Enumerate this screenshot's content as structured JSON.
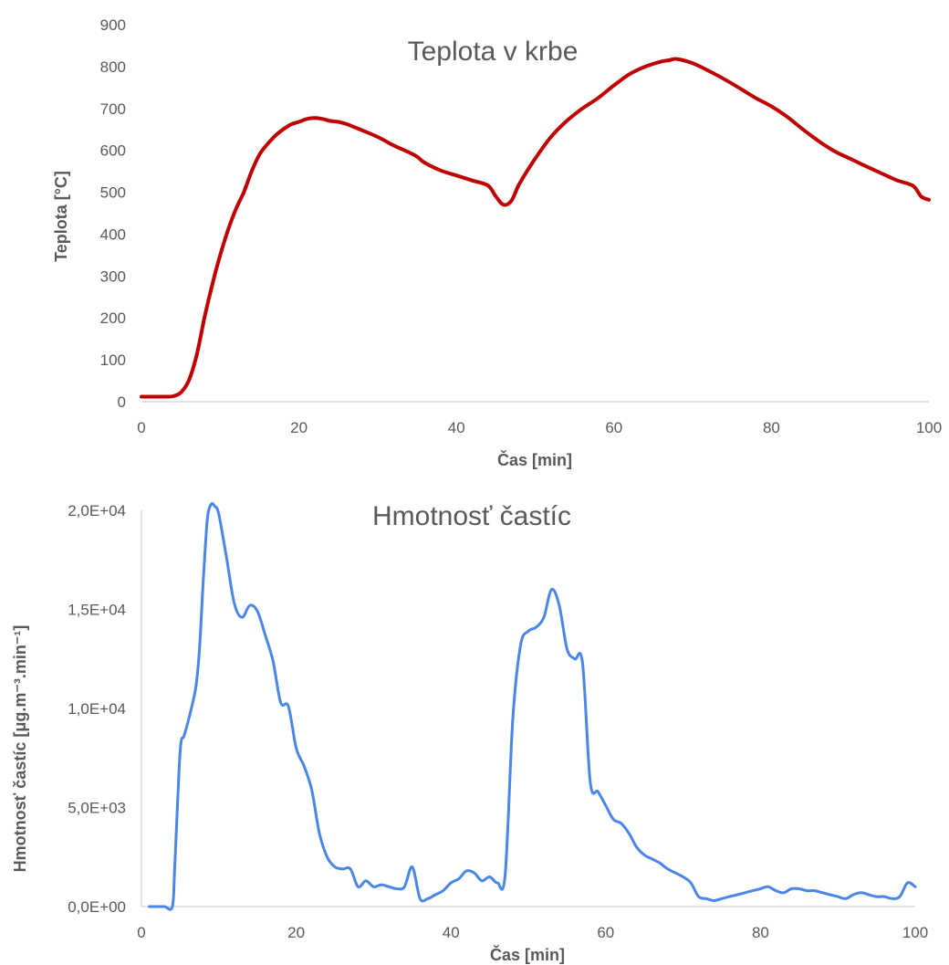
{
  "chart_data": [
    {
      "type": "line",
      "title": "Teplota v krbe",
      "xlabel": "Čas [min]",
      "ylabel": "Teplota [°C]",
      "xlim": [
        0,
        100
      ],
      "ylim": [
        0,
        900
      ],
      "xticks": [
        "0",
        "20",
        "40",
        "60",
        "80",
        "100"
      ],
      "yticks": [
        "0",
        "100",
        "200",
        "300",
        "400",
        "500",
        "600",
        "700",
        "800",
        "900"
      ],
      "grid": false,
      "series": [
        {
          "color": "#c00000",
          "x": [
            0,
            2,
            3,
            4,
            5,
            6,
            7,
            8,
            9,
            10,
            11,
            12,
            13,
            14,
            15,
            16,
            17,
            18,
            19,
            20,
            21,
            22,
            23,
            24,
            25,
            26,
            28,
            30,
            32,
            34,
            35,
            36,
            38,
            40,
            42,
            44,
            45,
            46,
            47,
            48,
            50,
            52,
            54,
            56,
            58,
            60,
            62,
            64,
            66,
            67,
            68,
            70,
            72,
            74,
            76,
            78,
            80,
            82,
            84,
            86,
            88,
            90,
            92,
            94,
            96,
            98,
            99,
            100
          ],
          "y": [
            12,
            12,
            12,
            13,
            22,
            50,
            110,
            200,
            280,
            350,
            410,
            460,
            500,
            550,
            590,
            615,
            635,
            650,
            662,
            668,
            675,
            677,
            675,
            670,
            668,
            663,
            648,
            632,
            612,
            595,
            585,
            570,
            552,
            540,
            528,
            516,
            490,
            470,
            480,
            520,
            580,
            632,
            670,
            700,
            725,
            755,
            782,
            800,
            812,
            815,
            818,
            808,
            790,
            770,
            748,
            725,
            705,
            680,
            650,
            622,
            598,
            580,
            562,
            545,
            528,
            515,
            490,
            482
          ]
        }
      ]
    },
    {
      "type": "line",
      "title": "Hmotnosť častíc",
      "xlabel": "Čas [min]",
      "ylabel": "Hmotnosť častíc [μg.m⁻³.min⁻¹]",
      "xlim": [
        0,
        100
      ],
      "ylim": [
        0,
        20000
      ],
      "xticks": [
        "0",
        "20",
        "40",
        "60",
        "80",
        "100"
      ],
      "yticks": [
        "0,0E+00",
        "5,0E+03",
        "1,0E+04",
        "1,5E+04",
        "2,0E+04"
      ],
      "grid": false,
      "series": [
        {
          "color": "#4a86e8",
          "x": [
            1,
            2,
            3,
            4,
            4.3,
            5,
            5.5,
            6,
            7,
            7.5,
            8,
            8.5,
            9,
            9.5,
            10,
            11,
            12,
            13,
            14,
            15,
            16,
            17,
            18,
            19,
            20,
            21,
            22,
            23,
            24,
            25,
            26,
            27,
            28,
            29,
            30,
            31,
            32,
            33,
            34,
            35,
            36,
            37,
            38,
            39,
            40,
            41,
            42,
            43,
            44,
            45,
            46,
            47,
            48,
            49,
            50,
            51,
            52,
            53,
            54,
            55,
            56,
            57,
            58,
            59,
            60,
            61,
            62,
            63,
            64,
            65,
            66,
            67,
            68,
            69,
            70,
            71,
            72,
            73,
            74,
            75,
            76,
            77,
            78,
            79,
            80,
            81,
            82,
            83,
            84,
            85,
            86,
            87,
            88,
            89,
            90,
            91,
            92,
            93,
            94,
            95,
            96,
            97,
            98,
            99,
            100
          ],
          "y": [
            0,
            0,
            0,
            0,
            2000,
            7800,
            8600,
            9300,
            11000,
            13000,
            16500,
            19500,
            20300,
            20200,
            19800,
            17600,
            15300,
            14600,
            15200,
            14900,
            13700,
            12400,
            10300,
            10100,
            8000,
            7100,
            5900,
            3700,
            2500,
            2000,
            1900,
            1900,
            1000,
            1300,
            1000,
            1100,
            1000,
            900,
            1000,
            2000,
            400,
            400,
            600,
            800,
            1200,
            1400,
            1800,
            1700,
            1300,
            1500,
            1200,
            1600,
            9500,
            13200,
            13900,
            14100,
            14600,
            16000,
            15200,
            13000,
            12500,
            12300,
            6300,
            5800,
            5100,
            4400,
            4200,
            3700,
            3000,
            2600,
            2400,
            2200,
            1900,
            1700,
            1500,
            1200,
            500,
            400,
            300,
            400,
            500,
            600,
            700,
            800,
            900,
            1000,
            800,
            700,
            900,
            900,
            800,
            800,
            700,
            600,
            500,
            400,
            600,
            700,
            600,
            500,
            500,
            400,
            500,
            1200,
            1000
          ]
        }
      ]
    }
  ]
}
